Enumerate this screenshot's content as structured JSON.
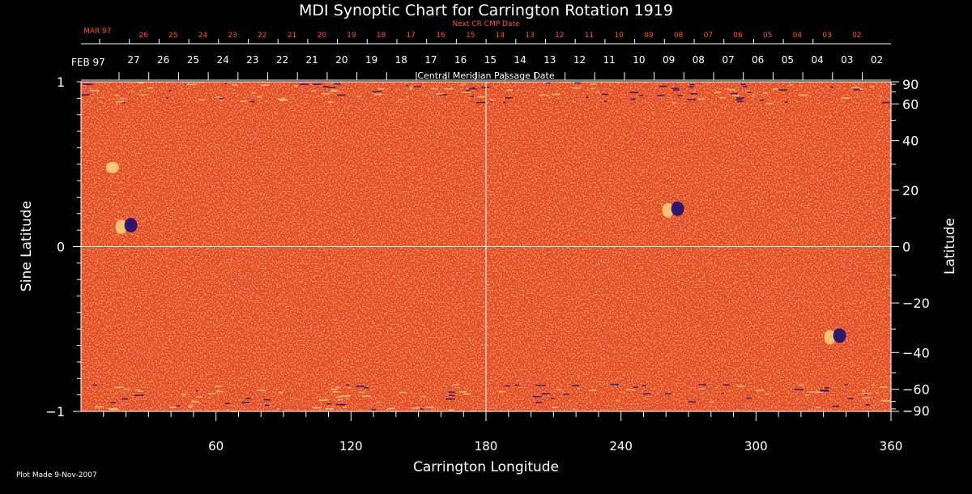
{
  "chart_data": {
    "type": "heatmap",
    "title": "MDI Synoptic Chart for Carrington Rotation 1919",
    "xlabel": "Carrington Longitude",
    "ylabel_left": "Sine Latitude",
    "ylabel_right": "Latitude",
    "xlim": [
      0,
      360
    ],
    "ylim_sine": [
      -1,
      1
    ],
    "x_ticks": [
      "60",
      "120",
      "180",
      "240",
      "300",
      "360"
    ],
    "x_tick_values": [
      60,
      120,
      180,
      240,
      300,
      360
    ],
    "y_left_ticks": [
      "1",
      "0",
      "−1"
    ],
    "y_left_tick_values": [
      1,
      0,
      -1
    ],
    "y_right_ticks": [
      "90",
      "60",
      "40",
      "20",
      "0",
      "−20",
      "−40",
      "−60",
      "−90"
    ],
    "y_right_tick_values": [
      90,
      60,
      40,
      20,
      0,
      -20,
      -40,
      -60,
      -90
    ],
    "cmp_axis": {
      "label": "Central Meridian Passage Date",
      "month_label": "FEB 97",
      "dates": [
        "27",
        "26",
        "25",
        "24",
        "23",
        "22",
        "21",
        "20",
        "19",
        "18",
        "17",
        "16",
        "15",
        "14",
        "13",
        "12",
        "11",
        "10",
        "09",
        "08",
        "07",
        "06",
        "05",
        "04",
        "03",
        "02"
      ]
    },
    "next_cr_axis": {
      "label": "Next CR CMP Date",
      "month_label": "MAR 97",
      "dates": [
        "26",
        "25",
        "24",
        "23",
        "22",
        "21",
        "20",
        "19",
        "18",
        "17",
        "16",
        "15",
        "14",
        "13",
        "12",
        "11",
        "10",
        "09",
        "08",
        "07",
        "06",
        "05",
        "04",
        "03",
        "02"
      ]
    },
    "grid_lines": {
      "vertical_longitude": 180,
      "horizontal_sine_latitude": 0
    },
    "colors": {
      "background": "#000000",
      "map_base": "#e8491a",
      "map_bright": "#ffd27a",
      "map_dark": "#1a1070",
      "next_cr_text": "#ff5030",
      "axis": "#ffffff"
    },
    "features": [
      {
        "kind": "bright-region",
        "longitude": 14,
        "sine_latitude": 0.48
      },
      {
        "kind": "mixed-polarity-region",
        "longitude": 20,
        "sine_latitude": 0.12
      },
      {
        "kind": "mixed-polarity-region",
        "longitude": 263,
        "sine_latitude": 0.22
      },
      {
        "kind": "mixed-polarity-region",
        "longitude": 335,
        "sine_latitude": -0.55
      }
    ]
  },
  "footer": {
    "plot_made": "Plot Made  9-Nov-2007"
  }
}
